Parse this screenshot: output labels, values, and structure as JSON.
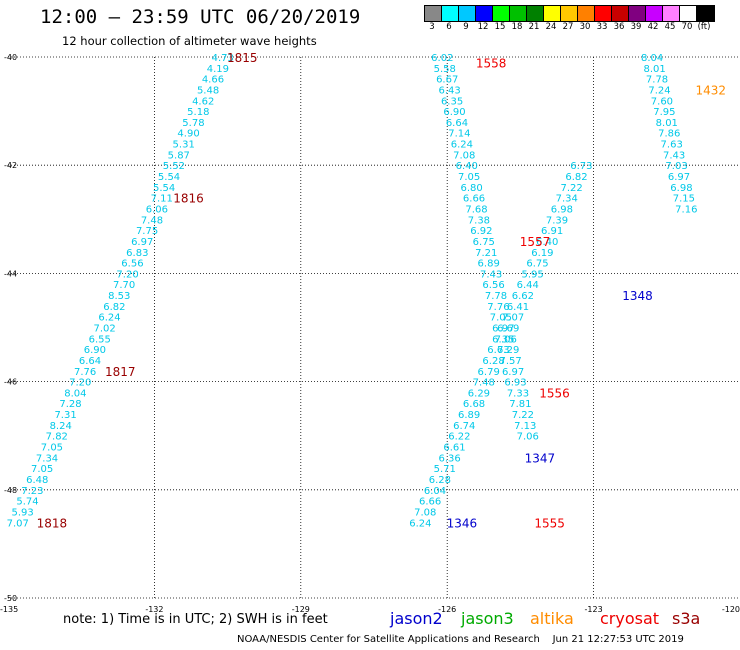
{
  "header": {
    "title": "12:00 – 23:59 UTC 06/20/2019",
    "subtitle": "12 hour collection of altimeter wave heights"
  },
  "colorbar": {
    "colors": [
      "#888888",
      "#00ffff",
      "#00c8ff",
      "#0000ff",
      "#00ff00",
      "#00c000",
      "#008000",
      "#ffff00",
      "#ffc800",
      "#ff8000",
      "#ff0000",
      "#c80000",
      "#800080",
      "#c800ff",
      "#ff80ff",
      "#ffffff",
      "#000000"
    ],
    "labels": [
      "3",
      "6",
      "9",
      "12",
      "15",
      "18",
      "21",
      "24",
      "27",
      "30",
      "33",
      "36",
      "39",
      "42",
      "45",
      "70",
      "(ft)"
    ]
  },
  "note": {
    "text": "note:  1) Time is in UTC; 2) SWH is in feet"
  },
  "satellites": [
    {
      "name": "jason2",
      "color": "#0000cc"
    },
    {
      "name": "jason3",
      "color": "#00aa00"
    },
    {
      "name": "altika",
      "color": "#ff8c00"
    },
    {
      "name": "cryosat",
      "color": "#ee0000"
    },
    {
      "name": "s3a",
      "color": "#990000"
    }
  ],
  "footer": {
    "text": "NOAA/NESDIS Center for Satellite Applications and Research    Jun 21 12:27:53 UTC 2019"
  },
  "chart_data": {
    "type": "scatter",
    "xlim": [
      -135,
      -120
    ],
    "ylim": [
      -50,
      -40
    ],
    "x_ticks": [
      "-135",
      "-132",
      "-129",
      "-126",
      "-123",
      "-120"
    ],
    "y_ticks": [
      "-40",
      "-42",
      "-44",
      "-46",
      "-48",
      "-50"
    ],
    "grid": true,
    "tracks": [
      {
        "satellite": "s3a",
        "color": "#00c8e8",
        "points": [
          {
            "x": -130.6,
            "y": -40.0,
            "v": "4.73"
          },
          {
            "x": -130.7,
            "y": -40.2,
            "v": "4.19"
          },
          {
            "x": -130.8,
            "y": -40.4,
            "v": "4.66"
          },
          {
            "x": -130.9,
            "y": -40.6,
            "v": "5.48"
          },
          {
            "x": -131.0,
            "y": -40.8,
            "v": "4.62"
          },
          {
            "x": -131.1,
            "y": -41.0,
            "v": "5.18"
          },
          {
            "x": -131.2,
            "y": -41.2,
            "v": "5.78"
          },
          {
            "x": -131.3,
            "y": -41.4,
            "v": "4.90"
          },
          {
            "x": -131.4,
            "y": -41.6,
            "v": "5.31"
          },
          {
            "x": -131.5,
            "y": -41.8,
            "v": "5.87"
          },
          {
            "x": -131.6,
            "y": -42.0,
            "v": "5.52"
          },
          {
            "x": -131.7,
            "y": -42.2,
            "v": "5.54"
          },
          {
            "x": -131.8,
            "y": -42.4,
            "v": "5.54"
          },
          {
            "x": -131.85,
            "y": -42.6,
            "v": "7.11"
          },
          {
            "x": -131.95,
            "y": -42.8,
            "v": "6.06"
          },
          {
            "x": -132.05,
            "y": -43.0,
            "v": "7.48"
          },
          {
            "x": -132.15,
            "y": -43.2,
            "v": "7.75"
          },
          {
            "x": -132.25,
            "y": -43.4,
            "v": "6.97"
          },
          {
            "x": -132.35,
            "y": -43.6,
            "v": "6.83"
          },
          {
            "x": -132.45,
            "y": -43.8,
            "v": "6.56"
          },
          {
            "x": -132.55,
            "y": -44.0,
            "v": "7.20"
          },
          {
            "x": -132.62,
            "y": -44.2,
            "v": "7.70"
          },
          {
            "x": -132.72,
            "y": -44.4,
            "v": "8.53"
          },
          {
            "x": -132.82,
            "y": -44.6,
            "v": "6.82"
          },
          {
            "x": -132.92,
            "y": -44.8,
            "v": "6.24"
          },
          {
            "x": -133.02,
            "y": -45.0,
            "v": "7.02"
          },
          {
            "x": -133.12,
            "y": -45.2,
            "v": "6.55"
          },
          {
            "x": -133.22,
            "y": -45.4,
            "v": "6.90"
          },
          {
            "x": -133.32,
            "y": -45.6,
            "v": "6.64"
          },
          {
            "x": -133.42,
            "y": -45.8,
            "v": "7.76"
          },
          {
            "x": -133.52,
            "y": -46.0,
            "v": "7.20"
          },
          {
            "x": -133.62,
            "y": -46.2,
            "v": "8.04"
          },
          {
            "x": -133.72,
            "y": -46.4,
            "v": "7.28"
          },
          {
            "x": -133.82,
            "y": -46.6,
            "v": "7.31"
          },
          {
            "x": -133.92,
            "y": -46.8,
            "v": "8.24"
          },
          {
            "x": -134.0,
            "y": -47.0,
            "v": "7.82"
          },
          {
            "x": -134.1,
            "y": -47.2,
            "v": "7.05"
          },
          {
            "x": -134.2,
            "y": -47.4,
            "v": "7.34"
          },
          {
            "x": -134.3,
            "y": -47.6,
            "v": "7.05"
          },
          {
            "x": -134.4,
            "y": -47.8,
            "v": "6.48"
          },
          {
            "x": -134.5,
            "y": -48.0,
            "v": "7.23"
          },
          {
            "x": -134.6,
            "y": -48.2,
            "v": "5.74"
          },
          {
            "x": -134.7,
            "y": -48.4,
            "v": "5.93"
          },
          {
            "x": -134.8,
            "y": -48.6,
            "v": "7.07"
          }
        ]
      },
      {
        "satellite": "cryosat",
        "color": "#00c8e8",
        "points": [
          {
            "x": -126.1,
            "y": -40.0,
            "v": "6.02"
          },
          {
            "x": -126.05,
            "y": -40.2,
            "v": "5.58"
          },
          {
            "x": -126.0,
            "y": -40.4,
            "v": "6.67"
          },
          {
            "x": -125.95,
            "y": -40.6,
            "v": "6.43"
          },
          {
            "x": -125.9,
            "y": -40.8,
            "v": "6.35"
          },
          {
            "x": -125.85,
            "y": -41.0,
            "v": "6.90"
          },
          {
            "x": -125.8,
            "y": -41.2,
            "v": "6.64"
          },
          {
            "x": -125.75,
            "y": -41.4,
            "v": "7.14"
          },
          {
            "x": -125.7,
            "y": -41.6,
            "v": "6.24"
          },
          {
            "x": -125.65,
            "y": -41.8,
            "v": "7.08"
          },
          {
            "x": -125.6,
            "y": -42.0,
            "v": "6.40"
          },
          {
            "x": -125.55,
            "y": -42.2,
            "v": "7.05"
          },
          {
            "x": -125.5,
            "y": -42.4,
            "v": "6.80"
          },
          {
            "x": -125.45,
            "y": -42.6,
            "v": "6.66"
          },
          {
            "x": -125.4,
            "y": -42.8,
            "v": "7.68"
          },
          {
            "x": -125.35,
            "y": -43.0,
            "v": "7.38"
          },
          {
            "x": -125.3,
            "y": -43.2,
            "v": "6.92"
          },
          {
            "x": -125.25,
            "y": -43.4,
            "v": "6.75"
          },
          {
            "x": -125.2,
            "y": -43.6,
            "v": "7.21"
          },
          {
            "x": -125.15,
            "y": -43.8,
            "v": "6.89"
          },
          {
            "x": -125.1,
            "y": -44.0,
            "v": "7.43"
          },
          {
            "x": -125.05,
            "y": -44.2,
            "v": "6.56"
          },
          {
            "x": -125.0,
            "y": -44.4,
            "v": "7.78"
          },
          {
            "x": -124.95,
            "y": -44.6,
            "v": "7.76"
          },
          {
            "x": -124.9,
            "y": -44.8,
            "v": "7.05"
          },
          {
            "x": -124.85,
            "y": -45.0,
            "v": "6.97"
          },
          {
            "x": -124.8,
            "y": -45.2,
            "v": "7.06"
          },
          {
            "x": -124.75,
            "y": -45.4,
            "v": "7.29"
          },
          {
            "x": -124.7,
            "y": -45.6,
            "v": "7.57"
          },
          {
            "x": -124.65,
            "y": -45.8,
            "v": "6.97"
          },
          {
            "x": -124.6,
            "y": -46.0,
            "v": "6.93"
          },
          {
            "x": -124.55,
            "y": -46.2,
            "v": "7.33"
          },
          {
            "x": -124.5,
            "y": -46.4,
            "v": "7.81"
          },
          {
            "x": -124.45,
            "y": -46.6,
            "v": "7.22"
          },
          {
            "x": -124.4,
            "y": -46.8,
            "v": "7.13"
          },
          {
            "x": -124.35,
            "y": -47.0,
            "v": "7.06"
          }
        ]
      },
      {
        "satellite": "jason3",
        "color": "#00c8e8",
        "points": [
          {
            "x": -126.55,
            "y": -48.6,
            "v": "6.24"
          },
          {
            "x": -126.45,
            "y": -48.4,
            "v": "7.08"
          },
          {
            "x": -126.35,
            "y": -48.2,
            "v": "6.66"
          },
          {
            "x": -126.25,
            "y": -48.0,
            "v": "6.04"
          },
          {
            "x": -126.15,
            "y": -47.8,
            "v": "6.28"
          },
          {
            "x": -126.05,
            "y": -47.6,
            "v": "5.71"
          },
          {
            "x": -125.95,
            "y": -47.4,
            "v": "6.36"
          },
          {
            "x": -125.85,
            "y": -47.2,
            "v": "6.61"
          },
          {
            "x": -125.75,
            "y": -47.0,
            "v": "6.22"
          },
          {
            "x": -125.65,
            "y": -46.8,
            "v": "6.74"
          },
          {
            "x": -125.55,
            "y": -46.6,
            "v": "6.89"
          },
          {
            "x": -125.45,
            "y": -46.4,
            "v": "6.68"
          },
          {
            "x": -125.35,
            "y": -46.2,
            "v": "6.29"
          },
          {
            "x": -125.25,
            "y": -46.0,
            "v": "7.48"
          },
          {
            "x": -125.15,
            "y": -45.8,
            "v": "6.79"
          },
          {
            "x": -125.05,
            "y": -45.6,
            "v": "6.28"
          },
          {
            "x": -124.95,
            "y": -45.4,
            "v": "6.63"
          },
          {
            "x": -124.85,
            "y": -45.2,
            "v": "6.35"
          },
          {
            "x": -124.75,
            "y": -45.0,
            "v": "6.69"
          },
          {
            "x": -124.65,
            "y": -44.8,
            "v": "7.07"
          },
          {
            "x": -124.55,
            "y": -44.6,
            "v": "6.41"
          },
          {
            "x": -124.45,
            "y": -44.4,
            "v": "6.62"
          },
          {
            "x": -124.35,
            "y": -44.2,
            "v": "6.44"
          },
          {
            "x": -124.25,
            "y": -44.0,
            "v": "5.95"
          },
          {
            "x": -124.15,
            "y": -43.8,
            "v": "6.75"
          },
          {
            "x": -124.05,
            "y": -43.6,
            "v": "6.19"
          },
          {
            "x": -123.95,
            "y": -43.4,
            "v": "6.40"
          },
          {
            "x": -123.85,
            "y": -43.2,
            "v": "6.91"
          },
          {
            "x": -123.75,
            "y": -43.0,
            "v": "7.39"
          },
          {
            "x": -123.65,
            "y": -42.8,
            "v": "6.98"
          },
          {
            "x": -123.55,
            "y": -42.6,
            "v": "7.34"
          },
          {
            "x": -123.45,
            "y": -42.4,
            "v": "7.22"
          },
          {
            "x": -123.35,
            "y": -42.2,
            "v": "6.82"
          },
          {
            "x": -123.25,
            "y": -42.0,
            "v": "6.73"
          }
        ]
      },
      {
        "satellite": "altika",
        "color": "#00c8e8",
        "points": [
          {
            "x": -121.8,
            "y": -40.0,
            "v": "8.04"
          },
          {
            "x": -121.75,
            "y": -40.2,
            "v": "8.01"
          },
          {
            "x": -121.7,
            "y": -40.4,
            "v": "7.78"
          },
          {
            "x": -121.65,
            "y": -40.6,
            "v": "7.24"
          },
          {
            "x": -121.6,
            "y": -40.8,
            "v": "7.60"
          },
          {
            "x": -121.55,
            "y": -41.0,
            "v": "7.95"
          },
          {
            "x": -121.5,
            "y": -41.2,
            "v": "8.01"
          },
          {
            "x": -121.45,
            "y": -41.4,
            "v": "7.86"
          },
          {
            "x": -121.4,
            "y": -41.6,
            "v": "7.63"
          },
          {
            "x": -121.35,
            "y": -41.8,
            "v": "7.43"
          },
          {
            "x": -121.3,
            "y": -42.0,
            "v": "7.03"
          },
          {
            "x": -121.25,
            "y": -42.2,
            "v": "6.97"
          },
          {
            "x": -121.2,
            "y": -42.4,
            "v": "6.98"
          },
          {
            "x": -121.15,
            "y": -42.6,
            "v": "7.15"
          },
          {
            "x": -121.1,
            "y": -42.8,
            "v": "7.16"
          }
        ]
      }
    ],
    "time_labels": [
      {
        "x": -130.2,
        "y": -40.0,
        "text": "1815",
        "color": "#990000"
      },
      {
        "x": -131.3,
        "y": -42.6,
        "text": "1816",
        "color": "#990000"
      },
      {
        "x": -132.7,
        "y": -45.8,
        "text": "1817",
        "color": "#990000"
      },
      {
        "x": -134.1,
        "y": -48.6,
        "text": "1818",
        "color": "#990000"
      },
      {
        "x": -125.1,
        "y": -40.1,
        "text": "1558",
        "color": "#ee0000"
      },
      {
        "x": -124.2,
        "y": -43.4,
        "text": "1557",
        "color": "#ee0000"
      },
      {
        "x": -123.8,
        "y": -46.2,
        "text": "1556",
        "color": "#ee0000"
      },
      {
        "x": -123.9,
        "y": -48.6,
        "text": "1555",
        "color": "#ee0000"
      },
      {
        "x": -125.7,
        "y": -48.6,
        "text": "1346",
        "color": "#0000cc"
      },
      {
        "x": -124.1,
        "y": -47.4,
        "text": "1347",
        "color": "#0000cc"
      },
      {
        "x": -122.1,
        "y": -44.4,
        "text": "1348",
        "color": "#0000cc"
      },
      {
        "x": -120.6,
        "y": -40.6,
        "text": "1432",
        "color": "#ff8c00"
      }
    ]
  }
}
